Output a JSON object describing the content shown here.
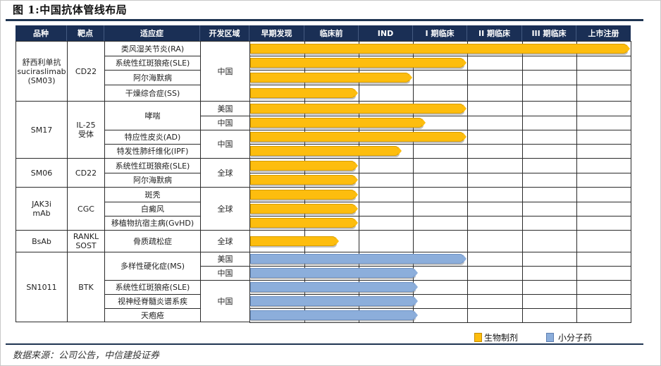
{
  "title": "图 1:中国抗体管线布局",
  "source": "数据来源：公司公告，中信建投证券",
  "columns": {
    "product": "品种",
    "target": "靶点",
    "indication": "适应症",
    "region": "开发区域",
    "stages": [
      "早期发现",
      "临床前",
      "IND",
      "I 期临床",
      "II 期临床",
      "III 期临床",
      "上市注册"
    ]
  },
  "legend": {
    "biologic": "生物制剂",
    "small_molecule": "小分子药"
  },
  "colors": {
    "header": "#1a2f55",
    "biologic": "#fdbd0e",
    "small_molecule": "#8caedb"
  },
  "groups": [
    {
      "product": "舒西利单抗\nsuciraslimab\n(SM03)",
      "target": "CD22"
    },
    {
      "product": "SM17",
      "target": "IL-25\n受体"
    },
    {
      "product": "SM06",
      "target": "CD22"
    },
    {
      "product": "JAK3i\nmAb",
      "target": "CGC"
    },
    {
      "product": "BsAb",
      "target": "RANKL\nSOST"
    },
    {
      "product": "SN1011",
      "target": "BTK"
    }
  ],
  "indications": [
    "类风湿关节炎(RA)",
    "系统性红斑狼疮(SLE)",
    "阿尔海默病",
    "干燥综合症(SS)",
    "哮喘",
    "特应性皮炎(AD)",
    "特发性肺纤维化(IPF)",
    "系统性红斑狼疮(SLE)",
    "阿尔海默病",
    "斑秃",
    "白癜风",
    "移植物抗宿主病(GvHD)",
    "骨质疏松症",
    "多样性硬化症(MS)",
    "系统性红斑狼疮(SLE)",
    "视神经脊髓炎谱系疾",
    "天疱疮"
  ],
  "regions": [
    "中国",
    "美国",
    "中国",
    "中国",
    "全球",
    "全球",
    "全球",
    "美国",
    "中国",
    "中国"
  ],
  "chart_data": {
    "type": "bar",
    "title": "图 1:中国抗体管线布局",
    "orientation": "horizontal",
    "categories": [
      "早期发现",
      "临床前",
      "IND",
      "I 期临床",
      "II 期临床",
      "III 期临床",
      "上市注册"
    ],
    "legend": [
      "生物制剂",
      "小分子药"
    ],
    "units": "stage progress (0=start of 早期发现, 7=end of 上市注册)",
    "series": [
      {
        "product": "舒西利单抗 suciraslimab (SM03)",
        "target": "CD22",
        "indication": "类风湿关节炎(RA)",
        "region": "中国",
        "type": "生物制剂",
        "value": 7.0
      },
      {
        "product": "舒西利单抗 suciraslimab (SM03)",
        "target": "CD22",
        "indication": "系统性红斑狼疮(SLE)",
        "region": "中国",
        "type": "生物制剂",
        "value": 4.0
      },
      {
        "product": "舒西利单抗 suciraslimab (SM03)",
        "target": "CD22",
        "indication": "阿尔海默病",
        "region": "中国",
        "type": "生物制剂",
        "value": 3.0
      },
      {
        "product": "舒西利单抗 suciraslimab (SM03)",
        "target": "CD22",
        "indication": "干燥综合症(SS)",
        "region": "中国",
        "type": "生物制剂",
        "value": 2.0
      },
      {
        "product": "SM17",
        "target": "IL-25受体",
        "indication": "哮喘",
        "region": "美国",
        "type": "生物制剂",
        "value": 4.0
      },
      {
        "product": "SM17",
        "target": "IL-25受体",
        "indication": "哮喘",
        "region": "中国",
        "type": "生物制剂",
        "value": 3.25
      },
      {
        "product": "SM17",
        "target": "IL-25受体",
        "indication": "特应性皮炎(AD)",
        "region": "中国",
        "type": "生物制剂",
        "value": 4.0
      },
      {
        "product": "SM17",
        "target": "IL-25受体",
        "indication": "特发性肺纤维化(IPF)",
        "region": "中国",
        "type": "生物制剂",
        "value": 2.8
      },
      {
        "product": "SM06",
        "target": "CD22",
        "indication": "系统性红斑狼疮(SLE)",
        "region": "全球",
        "type": "生物制剂",
        "value": 2.0
      },
      {
        "product": "SM06",
        "target": "CD22",
        "indication": "阿尔海默病",
        "region": "全球",
        "type": "生物制剂",
        "value": 2.0
      },
      {
        "product": "JAK3i mAb",
        "target": "CGC",
        "indication": "斑秃",
        "region": "全球",
        "type": "生物制剂",
        "value": 2.0
      },
      {
        "product": "JAK3i mAb",
        "target": "CGC",
        "indication": "白癜风",
        "region": "全球",
        "type": "生物制剂",
        "value": 2.0
      },
      {
        "product": "JAK3i mAb",
        "target": "CGC",
        "indication": "移植物抗宿主病(GvHD)",
        "region": "全球",
        "type": "生物制剂",
        "value": 2.0
      },
      {
        "product": "BsAb",
        "target": "RANKL SOST",
        "indication": "骨质疏松症",
        "region": "全球",
        "type": "生物制剂",
        "value": 1.65
      },
      {
        "product": "SN1011",
        "target": "BTK",
        "indication": "多样性硬化症(MS)",
        "region": "美国",
        "type": "小分子药",
        "value": 4.0
      },
      {
        "product": "SN1011",
        "target": "BTK",
        "indication": "多样性硬化症(MS)",
        "region": "中国",
        "type": "小分子药",
        "value": 3.1
      },
      {
        "product": "SN1011",
        "target": "BTK",
        "indication": "系统性红斑狼疮(SLE)",
        "region": "中国",
        "type": "小分子药",
        "value": 3.1
      },
      {
        "product": "SN1011",
        "target": "BTK",
        "indication": "视神经脊髓炎谱系疾",
        "region": "中国",
        "type": "小分子药",
        "value": 3.1
      },
      {
        "product": "SN1011",
        "target": "BTK",
        "indication": "天疱疮",
        "region": "中国",
        "type": "小分子药",
        "value": 3.1
      }
    ],
    "grid": true,
    "legend_position": "bottom-right"
  }
}
